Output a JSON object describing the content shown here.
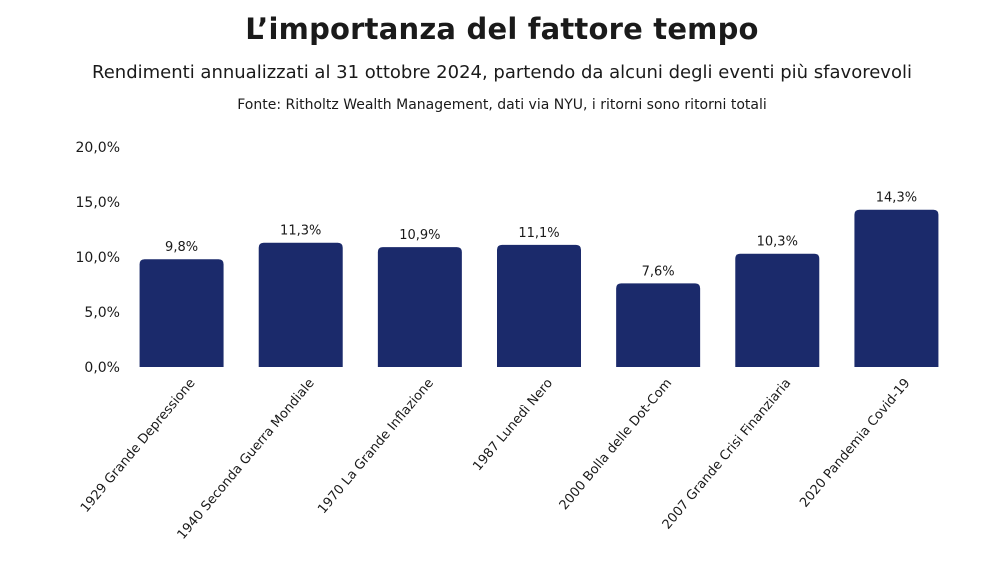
{
  "chart_data": {
    "type": "bar",
    "title": "L’importanza del fattore tempo",
    "subtitle": "Rendimenti annualizzati al 31 ottobre 2024, partendo da alcuni degli eventi più sfavorevoli",
    "source": "Fonte: Ritholtz Wealth Management, dati via NYU, i ritorni sono ritorni totali",
    "categories": [
      "1929 Grande Depressione",
      "1940 Seconda Guerra Mondiale",
      "1970 La Grande Inflazione",
      "1987 Lunedì Nero",
      "2000 Bolla delle Dot-Com",
      "2007 Grande Crisi Finanziaria",
      "2020 Pandemia Covid-19"
    ],
    "values": [
      9.8,
      11.3,
      10.9,
      11.1,
      7.6,
      10.3,
      14.3
    ],
    "data_labels": [
      "9,8%",
      "11,3%",
      "10,9%",
      "11,1%",
      "7,6%",
      "10,3%",
      "14,3%"
    ],
    "yticks": [
      0,
      5,
      10,
      15,
      20
    ],
    "ytick_labels": [
      "0,0%",
      "5,0%",
      "10,0%",
      "15,0%",
      "20,0%"
    ],
    "ylim": [
      0,
      20
    ],
    "grid": false,
    "xlabel": "",
    "ylabel": "",
    "bar_color": "#1b2a6b"
  }
}
